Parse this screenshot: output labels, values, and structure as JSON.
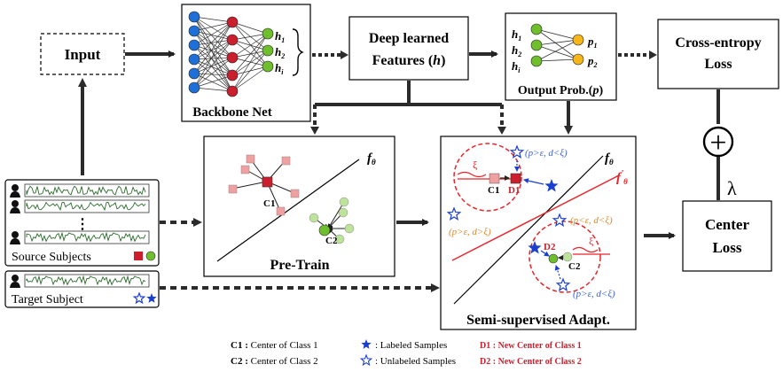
{
  "input_label": "Input",
  "backbone": {
    "label": "Backbone Net",
    "outputs": [
      {
        "base": "h",
        "sub": "1"
      },
      {
        "base": "h",
        "sub": "2"
      },
      {
        "base": "h",
        "sub": "i"
      }
    ]
  },
  "features": {
    "line1": "Deep learned",
    "line2_prefix": "Features (",
    "line2_sym": "h",
    "line2_suffix": ")"
  },
  "output_prob": {
    "label_prefix": "Output Prob.(",
    "label_sym": "p",
    "label_suffix": ")",
    "inputs": [
      {
        "base": "h",
        "sub": "1"
      },
      {
        "base": "h",
        "sub": "2"
      },
      {
        "base": "h",
        "sub": "i"
      }
    ],
    "outputs": [
      {
        "base": "p",
        "sub": "1"
      },
      {
        "base": "p",
        "sub": "2"
      }
    ]
  },
  "cross_entropy": {
    "line1": "Cross-entropy",
    "line2": "Loss"
  },
  "center_loss": {
    "line1": "Center",
    "line2": "Loss"
  },
  "plus_symbol": "+",
  "lambda_symbol": "λ",
  "pretrain": {
    "label": "Pre-Train",
    "c1": "C1",
    "c2": "C2",
    "f_base": "f",
    "f_sub": "θ"
  },
  "adapt": {
    "label": "Semi-supervised Adapt.",
    "c1": "C1",
    "d1": "D1",
    "c2": "C2",
    "d2": "D2",
    "f_base": "f",
    "f_sub": "θ",
    "f_prime_base": "f",
    "f_prime_sup": "'",
    "f_prime_sub": "θ",
    "xi": "ξ",
    "ann_top": "(p>ε,  d<ξ)",
    "ann_mid_right": "(p<ε, d<ξ)",
    "ann_left": "(p>ε,  d>ξ)",
    "ann_bottom": "(p>ε,  d<ξ)"
  },
  "subjects": {
    "source_label": "Source Subjects",
    "dots": "⋮",
    "target_label": "Target  Subject"
  },
  "legend": {
    "c1_key": "C1 :",
    "c1_text": "Center of Class 1",
    "c2_key": "C2 :",
    "c2_text": "Center of Class 2",
    "labeled_text": ": Labeled Samples",
    "unlabeled_text": ": Unlabeled Samples",
    "d1_key": "D1",
    "d1_text": ": New Center of Class 1",
    "d2_key": "D2",
    "d2_text": ": New Center of Class 2"
  },
  "colors": {
    "blue": "#1f6fd8",
    "red": "#cc1f2e",
    "green": "#6fbf2c",
    "yellow": "#f5b61a",
    "pink": "#f0a0a0",
    "lightgreen": "#bde39a",
    "star": "#1a3fd0",
    "dashed_red": "#e8242a",
    "annot_blue": "#3b63d8",
    "annot_orange": "#d98b2b"
  }
}
